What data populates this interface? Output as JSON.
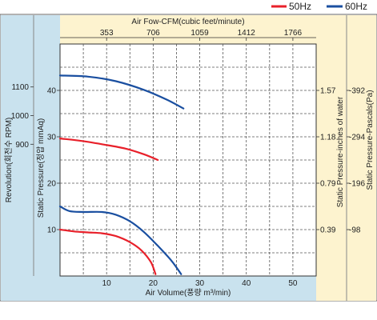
{
  "chart_data": {
    "type": "line",
    "legend_position": "top-right",
    "grid": true,
    "colors": {
      "50Hz": "#e8202a",
      "60Hz": "#1a4fa0",
      "band_fill": "#fdf3cf",
      "side_fill": "#c9e2ee"
    },
    "legend": [
      {
        "name": "50Hz",
        "color": "#e8202a"
      },
      {
        "name": "60Hz",
        "color": "#1a4fa0"
      }
    ],
    "x_axis": {
      "label": "Air Volume(풍량 m³/min)",
      "range": [
        0,
        55
      ],
      "ticks": [
        "10",
        "20",
        "30",
        "40",
        "50"
      ],
      "tick_values": [
        10,
        20,
        30,
        40,
        50
      ]
    },
    "top_axis": {
      "label": "Air Fow-CFM(cubic feet/minute)",
      "ticks": [
        "353",
        "706",
        "1059",
        "1412",
        "1766"
      ],
      "tick_values": [
        10,
        20,
        30,
        40,
        50
      ]
    },
    "pressure_axis": {
      "label": "Static Pressure(정압 mmAq)",
      "range": [
        0,
        50
      ],
      "ticks": [
        "10",
        "20",
        "30",
        "40"
      ],
      "tick_values": [
        10,
        20,
        30,
        40
      ]
    },
    "revolution_axis": {
      "label": "Revolution(회전수 RPM)",
      "ticks": [
        "1100",
        "1000",
        "900"
      ],
      "tick_values": [
        1100,
        1000,
        900
      ],
      "range": [
        440,
        1250
      ]
    },
    "inches_axis": {
      "label": "Static Pressure-inches of water",
      "ticks": [
        "1.57",
        "1.18",
        "0.79",
        "0.39"
      ],
      "tick_values": [
        40,
        30,
        20,
        10
      ]
    },
    "pascal_axis": {
      "label": "Static Pressure-Pascals(Pa)",
      "ticks": [
        "-392",
        "-294",
        "-196",
        "-98"
      ],
      "tick_values": [
        40,
        30,
        20,
        10
      ]
    },
    "series": [
      {
        "name": "50Hz",
        "kind": "pressure",
        "color": "#e8202a",
        "points": [
          [
            0,
            10
          ],
          [
            3,
            9.6
          ],
          [
            6,
            9.4
          ],
          [
            9,
            9.2
          ],
          [
            12,
            8.6
          ],
          [
            15,
            7.3
          ],
          [
            17.5,
            5.5
          ],
          [
            19.5,
            3.0
          ],
          [
            20.5,
            0.4
          ]
        ]
      },
      {
        "name": "60Hz",
        "kind": "pressure",
        "color": "#1a4fa0",
        "points": [
          [
            0,
            15
          ],
          [
            2,
            14
          ],
          [
            5,
            13.8
          ],
          [
            9,
            13.8
          ],
          [
            12,
            13.2
          ],
          [
            15,
            11.8
          ],
          [
            18,
            9.5
          ],
          [
            21,
            6.5
          ],
          [
            24,
            3.2
          ],
          [
            26,
            0.4
          ]
        ]
      },
      {
        "name": "50Hz",
        "kind": "revolution",
        "color": "#e8202a",
        "points": [
          [
            0,
            920
          ],
          [
            4,
            913
          ],
          [
            9,
            900
          ],
          [
            14,
            885
          ],
          [
            18,
            865
          ],
          [
            21,
            845
          ]
        ]
      },
      {
        "name": "60Hz",
        "kind": "revolution",
        "color": "#1a4fa0",
        "points": [
          [
            0,
            1140
          ],
          [
            6,
            1136
          ],
          [
            12,
            1120
          ],
          [
            18,
            1090
          ],
          [
            23,
            1055
          ],
          [
            26.5,
            1025
          ]
        ]
      }
    ]
  }
}
